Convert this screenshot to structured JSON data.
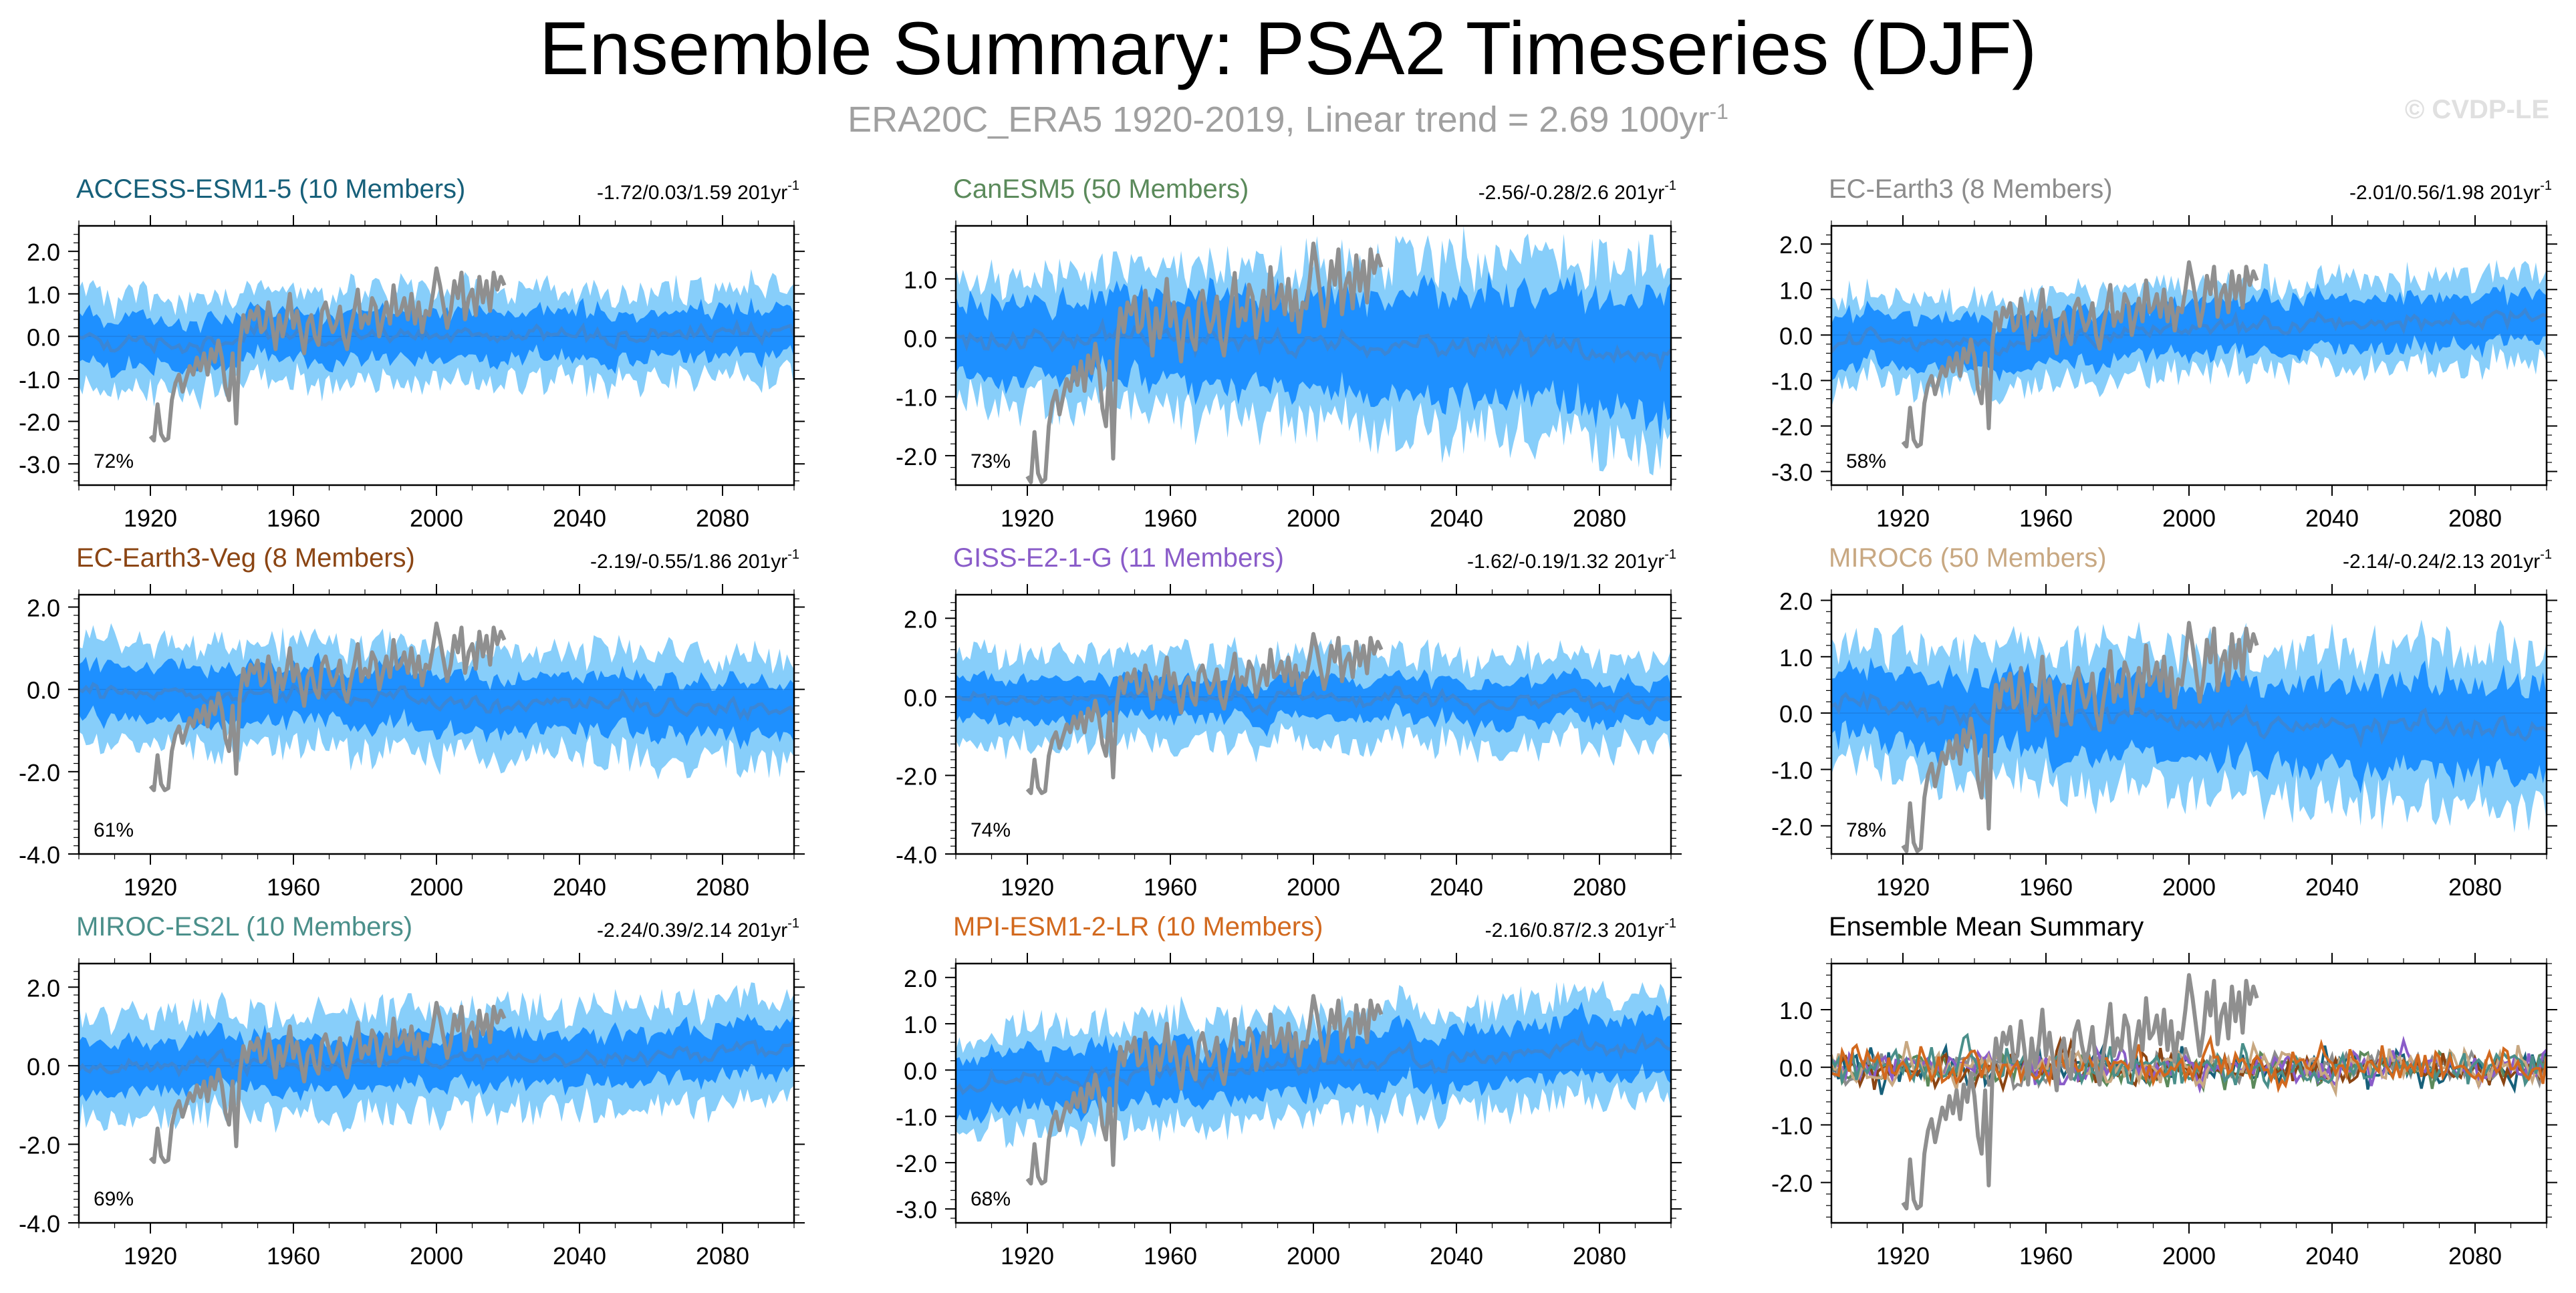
{
  "title": "Ensemble Summary: PSA2 Timeseries (DJF)",
  "subtitle": {
    "text": "ERA20C_ERA5 1920-2019, Linear trend = 2.69 100yr",
    "superscript": "-1"
  },
  "watermark": "© CVDP-LE",
  "colors": {
    "inner_band": "#1e90ff",
    "outer_band": "#87cefa",
    "ensemble_mean": "#3a86d6",
    "observations": "#8f8f8f"
  },
  "chart_data": [
    {
      "type": "line",
      "model": "ACCESS-ESM1-5",
      "title": "ACCESS-ESM1-5 (10 Members)",
      "title_color": "#17607a",
      "trend_label": "-1.72/0.03/1.59 201yr",
      "trend_sup": "-1",
      "percent_label": "72%",
      "xlim": [
        1900,
        2100
      ],
      "ylim": [
        -3.5,
        2.6
      ],
      "yticks": [
        -3.0,
        -2.0,
        -1.0,
        0.0,
        1.0,
        2.0
      ],
      "yticklabels": [
        "-3.0",
        "-2.0",
        "-1.0",
        "0.0",
        "1.0",
        "2.0"
      ],
      "xticks": [
        1920,
        1960,
        2000,
        2040,
        2080
      ],
      "xticklabels": [
        "1920",
        "1960",
        "2000",
        "2040",
        "2080"
      ],
      "spread_inner": 0.55,
      "spread_outer": 1.05,
      "mean_trend": [
        -0.15,
        0.1
      ],
      "seed": 3
    },
    {
      "type": "line",
      "model": "CanESM5",
      "title": "CanESM5 (50 Members)",
      "title_color": "#5b8a5b",
      "trend_label": "-2.56/-0.28/2.6 201yr",
      "trend_sup": "-1",
      "percent_label": "73%",
      "xlim": [
        1900,
        2100
      ],
      "ylim": [
        -2.5,
        1.9
      ],
      "yticks": [
        -2.0,
        -1.0,
        0.0,
        1.0
      ],
      "yticklabels": [
        "-2.0",
        "-1.0",
        "0.0",
        "1.0"
      ],
      "xticks": [
        1920,
        1960,
        2000,
        2040,
        2080
      ],
      "xticklabels": [
        "1920",
        "1960",
        "2000",
        "2040",
        "2080"
      ],
      "spread_inner": 0.6,
      "spread_outer": 1.0,
      "spread_growth": 0.7,
      "mean_trend": [
        0.05,
        -0.25
      ],
      "seed": 7
    },
    {
      "type": "line",
      "model": "EC-Earth3",
      "title": "EC-Earth3 (8 Members)",
      "title_color": "#8c8c8c",
      "trend_label": "-2.01/0.56/1.98 201yr",
      "trend_sup": "-1",
      "percent_label": "58%",
      "xlim": [
        1900,
        2100
      ],
      "ylim": [
        -3.3,
        2.4
      ],
      "yticks": [
        -3.0,
        -2.0,
        -1.0,
        0.0,
        1.0,
        2.0
      ],
      "yticklabels": [
        "-3.0",
        "-2.0",
        "-1.0",
        "0.0",
        "1.0",
        "2.0"
      ],
      "xticks": [
        1920,
        1960,
        2000,
        2040,
        2080
      ],
      "xticklabels": [
        "1920",
        "1960",
        "2000",
        "2040",
        "2080"
      ],
      "spread_inner": 0.55,
      "spread_outer": 0.95,
      "mean_trend": [
        -0.25,
        0.4
      ],
      "seed": 11
    },
    {
      "type": "line",
      "model": "EC-Earth3-Veg",
      "title": "EC-Earth3-Veg (8 Members)",
      "title_color": "#8b4513",
      "trend_label": "-2.19/-0.55/1.86 201yr",
      "trend_sup": "-1",
      "percent_label": "61%",
      "xlim": [
        1900,
        2100
      ],
      "ylim": [
        -4.0,
        2.3
      ],
      "yticks": [
        -4.0,
        -2.0,
        0.0,
        2.0
      ],
      "yticklabels": [
        "-4.0",
        "-2.0",
        "0.0",
        "2.0"
      ],
      "xticks": [
        1920,
        1960,
        2000,
        2040,
        2080
      ],
      "xticklabels": [
        "1920",
        "1960",
        "2000",
        "2040",
        "2080"
      ],
      "spread_inner": 0.65,
      "spread_outer": 1.25,
      "mean_trend": [
        0.0,
        -0.5
      ],
      "seed": 17
    },
    {
      "type": "line",
      "model": "GISS-E2-1-G",
      "title": "GISS-E2-1-G (11 Members)",
      "title_color": "#8a5cc9",
      "trend_label": "-1.62/-0.19/1.32 201yr",
      "trend_sup": "-1",
      "percent_label": "74%",
      "xlim": [
        1900,
        2100
      ],
      "ylim": [
        -4.0,
        2.6
      ],
      "yticks": [
        -4.0,
        -2.0,
        0.0,
        2.0
      ],
      "yticklabels": [
        "-4.0",
        "-2.0",
        "0.0",
        "2.0"
      ],
      "xticks": [
        1920,
        1960,
        2000,
        2040,
        2080
      ],
      "xticklabels": [
        "1920",
        "1960",
        "2000",
        "2040",
        "2080"
      ],
      "spread_inner": 0.5,
      "spread_outer": 1.1,
      "mean_trend": [
        0.0,
        -0.15
      ],
      "seed": 23
    },
    {
      "type": "line",
      "model": "MIROC6",
      "title": "MIROC6 (50 Members)",
      "title_color": "#c8a882",
      "trend_label": "-2.14/-0.24/2.13 201yr",
      "trend_sup": "-1",
      "percent_label": "78%",
      "xlim": [
        1900,
        2100
      ],
      "ylim": [
        -2.5,
        2.1
      ],
      "yticks": [
        -2.0,
        -1.0,
        0.0,
        1.0,
        2.0
      ],
      "yticklabels": [
        "-2.0",
        "-1.0",
        "0.0",
        "1.0",
        "2.0"
      ],
      "xticks": [
        1920,
        1960,
        2000,
        2040,
        2080
      ],
      "xticklabels": [
        "1920",
        "1960",
        "2000",
        "2040",
        "2080"
      ],
      "spread_inner": 0.6,
      "spread_outer": 1.05,
      "spread_growth": 0.35,
      "mean_trend": [
        0.1,
        -0.3
      ],
      "seed": 31
    },
    {
      "type": "line",
      "model": "MIROC-ES2L",
      "title": "MIROC-ES2L (10 Members)",
      "title_color": "#4a8f8a",
      "trend_label": "-2.24/0.39/2.14 201yr",
      "trend_sup": "-1",
      "percent_label": "69%",
      "xlim": [
        1900,
        2100
      ],
      "ylim": [
        -4.0,
        2.6
      ],
      "yticks": [
        -4.0,
        -2.0,
        0.0,
        2.0
      ],
      "yticklabels": [
        "-4.0",
        "-2.0",
        "0.0",
        "2.0"
      ],
      "xticks": [
        1920,
        1960,
        2000,
        2040,
        2080
      ],
      "xticklabels": [
        "1920",
        "1960",
        "2000",
        "2040",
        "2080"
      ],
      "spread_inner": 0.65,
      "spread_outer": 1.3,
      "mean_trend": [
        -0.1,
        0.45
      ],
      "seed": 37
    },
    {
      "type": "line",
      "model": "MPI-ESM1-2-LR",
      "title": "MPI-ESM1-2-LR (10 Members)",
      "title_color": "#d2691e",
      "trend_label": "-2.16/0.87/2.3 201yr",
      "trend_sup": "-1",
      "percent_label": "68%",
      "xlim": [
        1900,
        2100
      ],
      "ylim": [
        -3.3,
        2.3
      ],
      "yticks": [
        -3.0,
        -2.0,
        -1.0,
        0.0,
        1.0,
        2.0
      ],
      "yticklabels": [
        "-3.0",
        "-2.0",
        "-1.0",
        "0.0",
        "1.0",
        "2.0"
      ],
      "xticks": [
        1920,
        1960,
        2000,
        2040,
        2080
      ],
      "xticklabels": [
        "1920",
        "1960",
        "2000",
        "2040",
        "2080"
      ],
      "spread_inner": 0.6,
      "spread_outer": 1.1,
      "mean_trend": [
        -0.3,
        0.55
      ],
      "seed": 41
    },
    {
      "type": "line",
      "model": "summary",
      "title": "Ensemble Mean Summary",
      "title_color": "#000000",
      "trend_label": "",
      "trend_sup": "",
      "percent_label": "",
      "xlim": [
        1900,
        2100
      ],
      "ylim": [
        -2.7,
        1.8
      ],
      "yticks": [
        -2.0,
        -1.0,
        0.0,
        1.0
      ],
      "yticklabels": [
        "-2.0",
        "-1.0",
        "0.0",
        "1.0"
      ],
      "xticks": [
        1920,
        1960,
        2000,
        2040,
        2080
      ],
      "xticklabels": [
        "1920",
        "1960",
        "2000",
        "2040",
        "2080"
      ],
      "summary_series_colors": [
        "#17607a",
        "#5b8a5b",
        "#8c8c8c",
        "#8b4513",
        "#8a5cc9",
        "#c8a882",
        "#4a8f8a",
        "#d2691e"
      ],
      "seed": 53
    }
  ],
  "observations": {
    "name": "ERA20C_ERA5",
    "years": [
      1920,
      1921,
      1922,
      1923,
      1924,
      1925,
      1926,
      1927,
      1928,
      1929,
      1930,
      1931,
      1932,
      1933,
      1934,
      1935,
      1936,
      1937,
      1938,
      1939,
      1940,
      1941,
      1942,
      1943,
      1944,
      1945,
      1946,
      1947,
      1948,
      1949,
      1950,
      1951,
      1952,
      1953,
      1954,
      1955,
      1956,
      1957,
      1958,
      1959,
      1960,
      1961,
      1962,
      1963,
      1964,
      1965,
      1966,
      1967,
      1968,
      1969,
      1970,
      1971,
      1972,
      1973,
      1974,
      1975,
      1976,
      1977,
      1978,
      1979,
      1980,
      1981,
      1982,
      1983,
      1984,
      1985,
      1986,
      1987,
      1988,
      1989,
      1990,
      1991,
      1992,
      1993,
      1994,
      1995,
      1996,
      1997,
      1998,
      1999,
      2000,
      2001,
      2002,
      2003,
      2004,
      2005,
      2006,
      2007,
      2008,
      2009,
      2010,
      2011,
      2012,
      2013,
      2014,
      2015,
      2016,
      2017,
      2018,
      2019
    ],
    "values": [
      -2.35,
      -2.45,
      -1.6,
      -2.3,
      -2.45,
      -2.4,
      -1.5,
      -1.1,
      -0.9,
      -1.3,
      -1.0,
      -0.7,
      -0.9,
      -0.5,
      -0.8,
      -0.4,
      -0.9,
      -0.3,
      -0.6,
      -0.1,
      -0.5,
      -1.2,
      -1.5,
      -0.4,
      -2.05,
      -0.2,
      0.5,
      0.1,
      0.6,
      0.4,
      0.7,
      0.1,
      0.2,
      0.8,
      0.3,
      -0.3,
      0.5,
      0.0,
      0.4,
      1.0,
      0.2,
      0.6,
      0.1,
      -0.4,
      0.3,
      0.5,
      0.0,
      -0.2,
      0.6,
      0.8,
      0.4,
      0.1,
      0.3,
      0.7,
      0.0,
      -0.3,
      0.2,
      0.6,
      1.1,
      0.2,
      0.5,
      0.3,
      0.9,
      0.7,
      0.0,
      0.4,
      0.8,
      0.3,
      1.2,
      0.5,
      0.6,
      0.9,
      0.4,
      1.0,
      0.3,
      0.8,
      0.1,
      0.6,
      0.5,
      1.0,
      1.6,
      1.2,
      0.7,
      0.2,
      0.6,
      1.3,
      0.9,
      1.5,
      0.4,
      0.9,
      1.1,
      0.5,
      1.4,
      0.8,
      1.3,
      0.6,
      1.5,
      1.1,
      1.4,
      1.2
    ]
  }
}
